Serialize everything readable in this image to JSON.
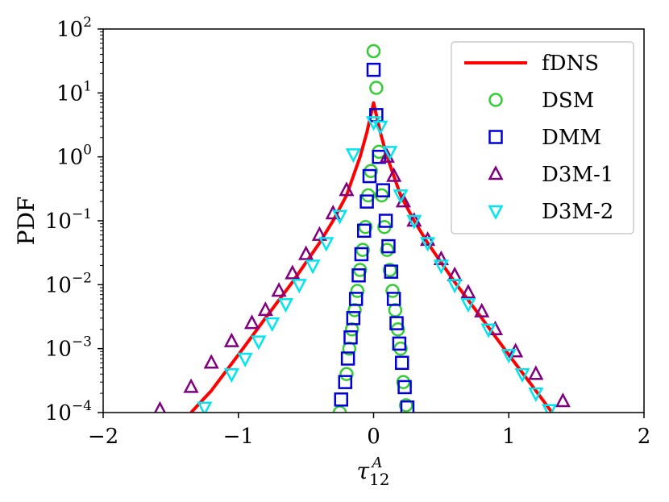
{
  "chart_data": {
    "type": "line",
    "title": "",
    "xlabel_base": "τ",
    "xlabel_sub": "12",
    "xlabel_sup": "A",
    "ylabel": "PDF",
    "xlim": [
      -2,
      2
    ],
    "ylim": [
      0.0001,
      100
    ],
    "yscale": "log",
    "grid": false,
    "legend_position": "top-right",
    "x_ticks": [
      -2,
      -1,
      0,
      1,
      2
    ],
    "x_tick_labels": [
      "−2",
      "−1",
      "0",
      "1",
      "2"
    ],
    "y_ticks": [
      {
        "value": 100,
        "base": "10",
        "exp": "2"
      },
      {
        "value": 10,
        "base": "10",
        "exp": "1"
      },
      {
        "value": 1,
        "base": "10",
        "exp": "0"
      },
      {
        "value": 0.1,
        "base": "10",
        "exp": "−1"
      },
      {
        "value": 0.01,
        "base": "10",
        "exp": "−2"
      },
      {
        "value": 0.001,
        "base": "10",
        "exp": "−3"
      },
      {
        "value": 0.0001,
        "base": "10",
        "exp": "−4"
      }
    ],
    "series": [
      {
        "name": "fDNS",
        "kind": "line",
        "color": "#ff0000",
        "x": [
          -1.35,
          -1.2,
          -1.0,
          -0.8,
          -0.6,
          -0.4,
          -0.3,
          -0.2,
          -0.1,
          -0.05,
          0.0,
          0.05,
          0.1,
          0.2,
          0.3,
          0.4,
          0.6,
          0.8,
          1.0,
          1.2,
          1.32
        ],
        "y": [
          0.0001,
          0.00022,
          0.0008,
          0.003,
          0.011,
          0.045,
          0.1,
          0.25,
          1.0,
          2.4,
          7.0,
          2.4,
          1.0,
          0.25,
          0.1,
          0.045,
          0.011,
          0.003,
          0.0008,
          0.00022,
          0.0001
        ]
      },
      {
        "name": "DSM",
        "kind": "marker",
        "marker": "circle",
        "color": "#33cc33",
        "x": [
          -0.25,
          -0.2,
          -0.18,
          -0.16,
          -0.14,
          -0.12,
          -0.1,
          -0.08,
          -0.06,
          -0.04,
          -0.02,
          0.0,
          0.02,
          0.04,
          0.06,
          0.08,
          0.1,
          0.12,
          0.14,
          0.16,
          0.18,
          0.2,
          0.22,
          0.24
        ],
        "y": [
          0.0001,
          0.0004,
          0.001,
          0.002,
          0.004,
          0.008,
          0.017,
          0.035,
          0.08,
          0.25,
          0.6,
          45,
          12,
          1.2,
          0.25,
          0.08,
          0.035,
          0.017,
          0.008,
          0.004,
          0.002,
          0.001,
          0.0003,
          0.00013
        ]
      },
      {
        "name": "DMM",
        "kind": "marker",
        "marker": "square",
        "color": "#0000dd",
        "x": [
          -0.24,
          -0.21,
          -0.19,
          -0.17,
          -0.15,
          -0.13,
          -0.11,
          -0.09,
          -0.07,
          -0.05,
          -0.03,
          0.0,
          0.02,
          0.04,
          0.07,
          0.09,
          0.11,
          0.13,
          0.15,
          0.17,
          0.19,
          0.21,
          0.23,
          0.25
        ],
        "y": [
          0.00016,
          0.0003,
          0.0007,
          0.0015,
          0.003,
          0.006,
          0.014,
          0.03,
          0.07,
          0.2,
          0.5,
          23,
          4.5,
          1.0,
          0.3,
          0.1,
          0.04,
          0.016,
          0.006,
          0.0025,
          0.0012,
          0.0006,
          0.00025,
          0.00012
        ]
      },
      {
        "name": "D3M-1",
        "kind": "marker",
        "marker": "triangle-up",
        "color": "#800080",
        "x": [
          -1.58,
          -1.35,
          -1.2,
          -1.05,
          -0.9,
          -0.8,
          -0.7,
          -0.6,
          -0.5,
          -0.4,
          -0.3,
          -0.2,
          0.1,
          0.15,
          0.22,
          0.3,
          0.4,
          0.5,
          0.6,
          0.7,
          0.8,
          0.9,
          1.05,
          1.2,
          1.4
        ],
        "y": [
          0.00011,
          0.00025,
          0.0006,
          0.0013,
          0.0025,
          0.004,
          0.008,
          0.015,
          0.03,
          0.06,
          0.13,
          0.3,
          1.0,
          0.5,
          0.2,
          0.1,
          0.05,
          0.025,
          0.014,
          0.0075,
          0.0038,
          0.002,
          0.0009,
          0.0004,
          0.00015
        ]
      },
      {
        "name": "D3M-2",
        "kind": "marker",
        "marker": "triangle-down",
        "color": "#00e5ee",
        "x": [
          -1.25,
          -1.05,
          -0.95,
          -0.85,
          -0.75,
          -0.65,
          -0.55,
          -0.45,
          -0.35,
          -0.25,
          -0.15,
          0.0,
          0.05,
          0.12,
          0.2,
          0.3,
          0.4,
          0.5,
          0.6,
          0.7,
          0.85,
          1.0,
          1.1,
          1.2,
          1.3
        ],
        "y": [
          0.00012,
          0.0004,
          0.0007,
          0.0013,
          0.0025,
          0.005,
          0.01,
          0.02,
          0.045,
          0.12,
          1.1,
          3.5,
          3.0,
          1.2,
          0.25,
          0.1,
          0.045,
          0.02,
          0.01,
          0.005,
          0.002,
          0.0008,
          0.0004,
          0.0002,
          0.00011
        ]
      }
    ]
  }
}
